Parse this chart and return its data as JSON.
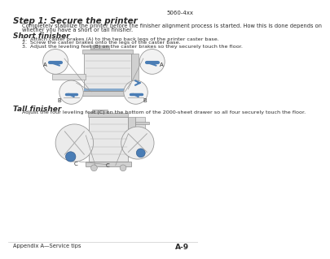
{
  "bg_color": "#ffffff",
  "header_text": "5060-4xx",
  "title": "Step 1: Secure the printer",
  "body_text1": "Completely stabilize the printer before the finisher alignment process is started. How this is done depends on",
  "body_text2": "whether you have a short or tall finisher.",
  "section1_title": "Short finisher",
  "step1": "1.  Attach caster brakes (A) to the two back legs of the printer caster base.",
  "step2": "2.  Screw the caster brakes onto the legs of the caster base.",
  "step3": "3.  Adjust the leveling feet (B) on the caster brakes so they securely touch the floor.",
  "section2_title": "Tall finisher",
  "section2_text": "Adjust the four leveling feet (C) on the bottom of the 2000-sheet drawer so all four securely touch the floor.",
  "footer_left": "Appendix A—Service tips",
  "footer_right": "A-9",
  "text_color": "#2b2b2b",
  "blue_color": "#4a7db5",
  "gray_light": "#e8e8e8",
  "gray_mid": "#d0d0d0",
  "gray_dark": "#aaaaaa"
}
